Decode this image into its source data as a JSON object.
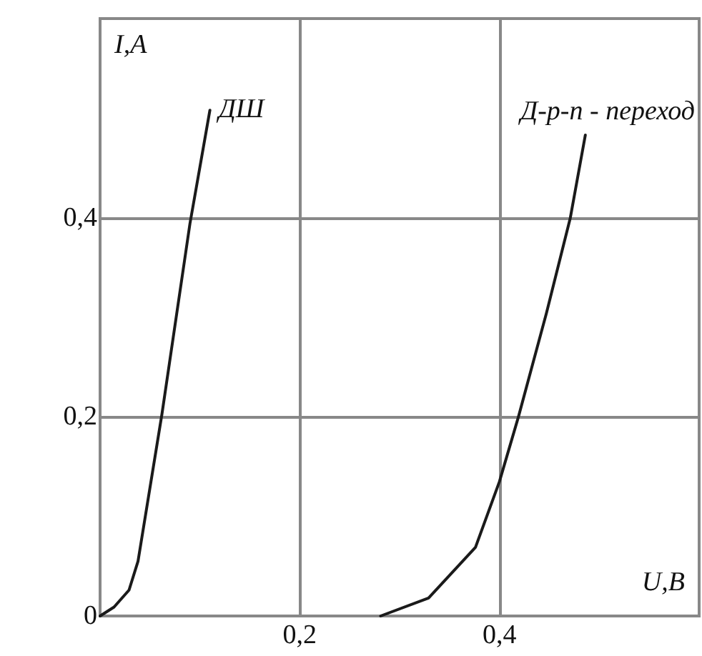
{
  "chart_data": {
    "type": "line",
    "xlabel": "U,B",
    "ylabel": "I,A",
    "xlim": [
      0,
      0.6
    ],
    "ylim": [
      0,
      0.6
    ],
    "xticks": [
      {
        "value": 0,
        "label": null
      },
      {
        "value": 0.2,
        "label": "0,2"
      },
      {
        "value": 0.4,
        "label": "0,4"
      }
    ],
    "yticks": [
      0,
      {
        "value": 0.2,
        "label": "0,2"
      },
      {
        "value": 0.4,
        "label": "0,4"
      }
    ],
    "grid": true,
    "legend": false,
    "marker": "none",
    "line_style": "solid",
    "series": [
      {
        "name": "ДШ",
        "color": "#1a1a1a",
        "x": [
          0,
          0.014,
          0.029,
          0.038,
          0.062,
          0.09,
          0.11
        ],
        "values": [
          0,
          0.009,
          0.026,
          0.055,
          0.203,
          0.394,
          0.508
        ]
      },
      {
        "name": "Д-p-n - переход",
        "color": "#1a1a1a",
        "x": [
          0.281,
          0.329,
          0.376,
          0.4,
          0.419,
          0.447,
          0.471,
          0.486
        ],
        "values": [
          0,
          0.018,
          0.069,
          0.135,
          0.2,
          0.304,
          0.4,
          0.483
        ]
      }
    ]
  }
}
